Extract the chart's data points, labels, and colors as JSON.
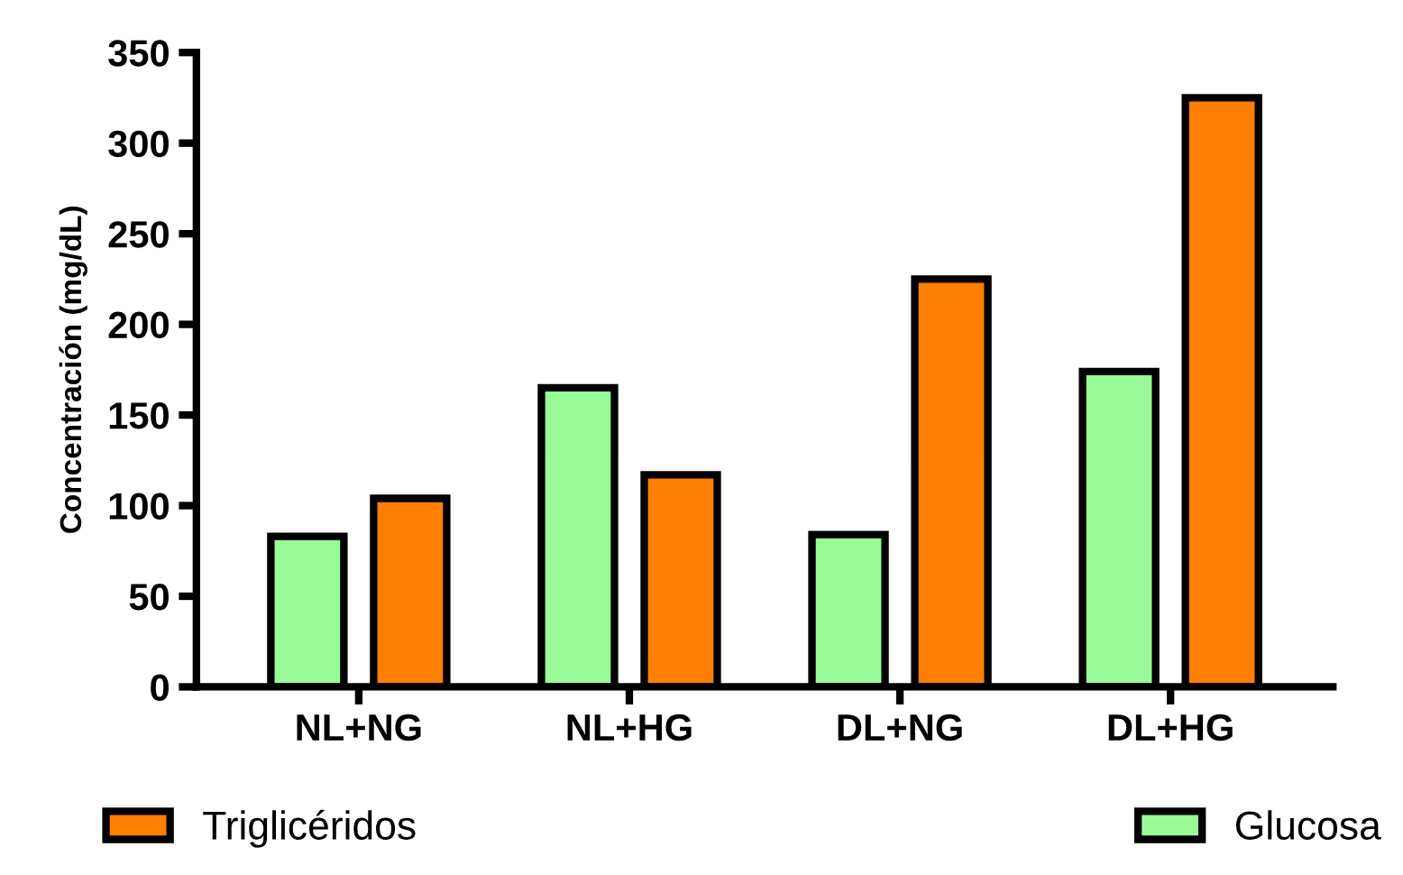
{
  "chart_data": {
    "type": "bar",
    "ylabel": "Concentración (mg/dL)",
    "categories": [
      "NL+NG",
      "NL+HG",
      "DL+NG",
      "DL+HG"
    ],
    "series": [
      {
        "name": "Glucosa",
        "color": "#98fb98",
        "values": [
          83,
          165,
          84,
          174
        ]
      },
      {
        "name": "Triglicéridos",
        "color": "#ff7f00",
        "values": [
          104,
          117,
          225,
          325
        ]
      }
    ],
    "ylim": [
      0,
      350
    ],
    "yticks": [
      0,
      50,
      100,
      150,
      200,
      250,
      300,
      350
    ],
    "grid": false,
    "legend": "bottom"
  }
}
